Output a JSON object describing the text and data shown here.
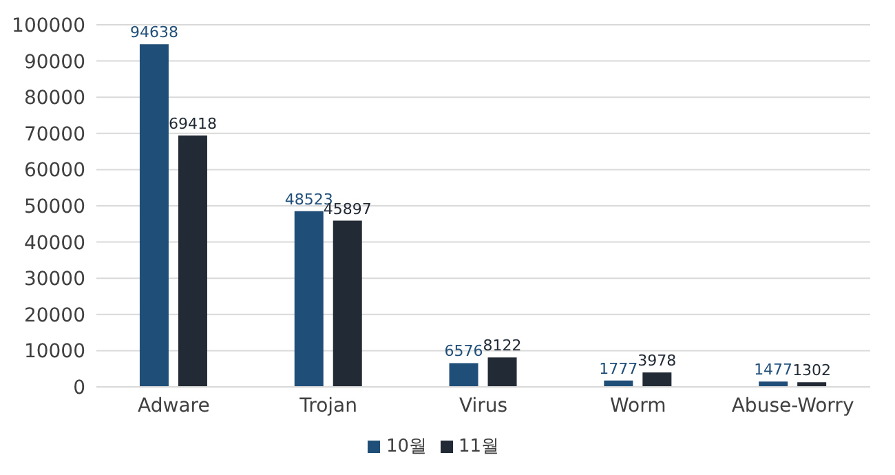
{
  "chart_data": {
    "type": "bar",
    "categories": [
      "Adware",
      "Trojan",
      "Virus",
      "Worm",
      "Abuse-Worry"
    ],
    "series": [
      {
        "name": "10월",
        "color": "#1f4e79",
        "values": [
          94638,
          48523,
          6576,
          1777,
          1477
        ]
      },
      {
        "name": "11월",
        "color": "#222a35",
        "values": [
          69418,
          45897,
          8122,
          3978,
          1302
        ]
      }
    ],
    "ylim": [
      0,
      100000
    ],
    "yticks": [
      0,
      10000,
      20000,
      30000,
      40000,
      50000,
      60000,
      70000,
      80000,
      90000,
      100000
    ],
    "grid": "y",
    "legend": "bottom",
    "data_labels": true
  }
}
